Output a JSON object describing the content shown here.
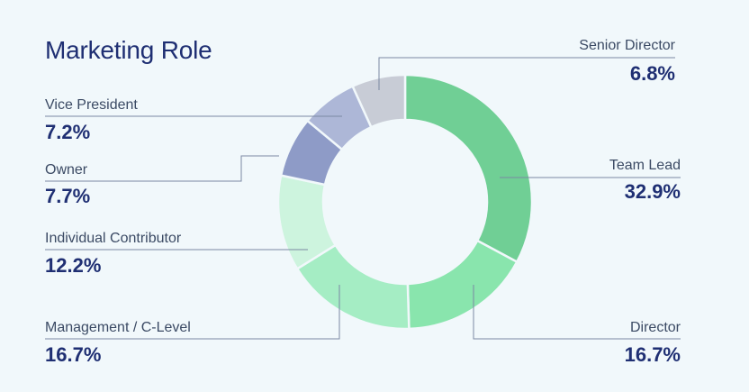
{
  "colors": {
    "background": "#f1f8fb",
    "title": "#1f2f73",
    "label_name": "#3b4a64",
    "label_value": "#1f2f73",
    "leader_line": "#7a88a3"
  },
  "chart_data": {
    "type": "pie",
    "title": "Marketing Role",
    "donut": true,
    "slices": [
      {
        "label": "Team Lead",
        "value": 32.9,
        "display": "32.9%",
        "color": "#70cf95"
      },
      {
        "label": "Director",
        "value": 16.7,
        "display": "16.7%",
        "color": "#89e5ad"
      },
      {
        "label": "Management / C-Level",
        "value": 16.7,
        "display": "16.7%",
        "color": "#a5edc4"
      },
      {
        "label": "Individual Contributor",
        "value": 12.2,
        "display": "12.2%",
        "color": "#cdf4de"
      },
      {
        "label": "Owner",
        "value": 7.7,
        "display": "7.7%",
        "color": "#8e9bc7"
      },
      {
        "label": "Vice President",
        "value": 7.2,
        "display": "7.2%",
        "color": "#adb7d7"
      },
      {
        "label": "Senior Director",
        "value": 6.8,
        "display": "6.8%",
        "color": "#c8ccd6"
      }
    ]
  }
}
